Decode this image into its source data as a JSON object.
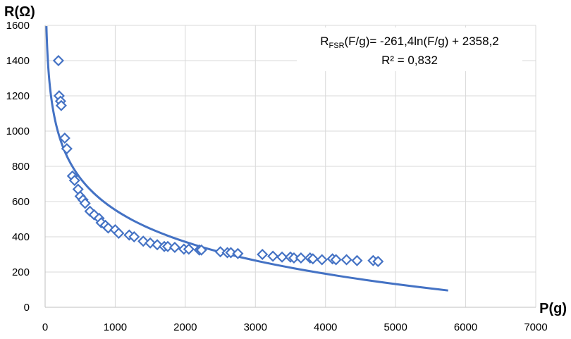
{
  "chart_data": {
    "type": "scatter",
    "xlabel": "P(g)",
    "ylabel": "R(Ω)",
    "xlim": [
      0,
      7000
    ],
    "ylim": [
      0,
      1600
    ],
    "xticks": [
      "0",
      "1000",
      "2000",
      "3000",
      "4000",
      "5000",
      "6000",
      "7000"
    ],
    "yticks": [
      "0",
      "200",
      "400",
      "600",
      "800",
      "1000",
      "1200",
      "1400",
      "1600"
    ],
    "grid": "horizontal and vertical gridlines",
    "marker": "hollow diamond",
    "marker_color": "#4472C4",
    "trendline_color": "#4472C4",
    "trendline": {
      "type": "logarithmic",
      "a": -261.4,
      "b": 2358.2,
      "x_range": [
        10,
        5750
      ],
      "label_lhs": "R",
      "label_sub": "FSR",
      "label_rhs": "(F/g)= -261,4ln(F/g) + 2358,2",
      "r2_label": "R² = 0,832"
    },
    "series": [
      {
        "points": [
          [
            190,
            1400
          ],
          [
            200,
            1200
          ],
          [
            220,
            1170
          ],
          [
            230,
            1145
          ],
          [
            280,
            960
          ],
          [
            310,
            900
          ],
          [
            390,
            745
          ],
          [
            420,
            720
          ],
          [
            470,
            670
          ],
          [
            500,
            630
          ],
          [
            540,
            610
          ],
          [
            570,
            590
          ],
          [
            640,
            545
          ],
          [
            700,
            525
          ],
          [
            770,
            505
          ],
          [
            800,
            480
          ],
          [
            860,
            465
          ],
          [
            900,
            450
          ],
          [
            1000,
            440
          ],
          [
            1050,
            420
          ],
          [
            1200,
            410
          ],
          [
            1270,
            400
          ],
          [
            1400,
            375
          ],
          [
            1500,
            365
          ],
          [
            1600,
            355
          ],
          [
            1700,
            345
          ],
          [
            1750,
            345
          ],
          [
            1850,
            340
          ],
          [
            1980,
            330
          ],
          [
            2050,
            330
          ],
          [
            2200,
            325
          ],
          [
            2230,
            325
          ],
          [
            2500,
            315
          ],
          [
            2600,
            310
          ],
          [
            2650,
            310
          ],
          [
            2750,
            305
          ],
          [
            3100,
            300
          ],
          [
            3250,
            290
          ],
          [
            3380,
            285
          ],
          [
            3500,
            285
          ],
          [
            3550,
            280
          ],
          [
            3650,
            280
          ],
          [
            3780,
            280
          ],
          [
            3820,
            275
          ],
          [
            3950,
            270
          ],
          [
            4100,
            275
          ],
          [
            4150,
            270
          ],
          [
            4300,
            270
          ],
          [
            4450,
            265
          ],
          [
            4680,
            265
          ],
          [
            4750,
            260
          ]
        ]
      }
    ]
  }
}
